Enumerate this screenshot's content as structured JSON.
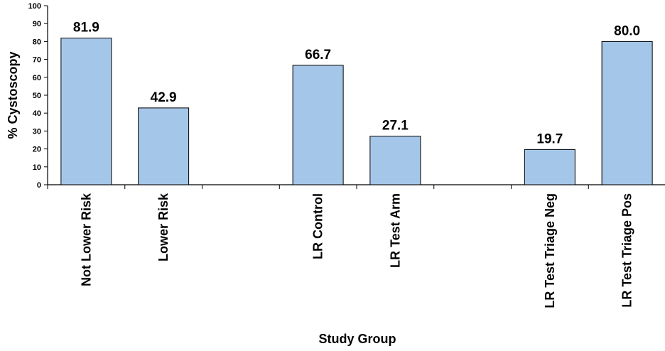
{
  "chart_data": {
    "type": "bar",
    "categories": [
      "Not Lower Risk",
      "Lower Risk",
      "",
      "LR Control",
      "LR Test Arm",
      "",
      "LR Test Triage Neg",
      "LR Test Triage Pos"
    ],
    "values": [
      81.9,
      42.9,
      null,
      66.7,
      27.1,
      null,
      19.7,
      80.0
    ],
    "data_labels": [
      "81.9",
      "42.9",
      "",
      "66.7",
      "27.1",
      "",
      "19.7",
      "80.0"
    ],
    "xlabel": "Study Group",
    "ylabel": "% Cystoscopy",
    "ylim": [
      0,
      100
    ],
    "yticks": [
      0,
      10,
      20,
      30,
      40,
      50,
      60,
      70,
      80,
      90,
      100
    ],
    "grid": false,
    "bar_color": "#A4C6E9",
    "bar_edge_color": "#000000"
  }
}
